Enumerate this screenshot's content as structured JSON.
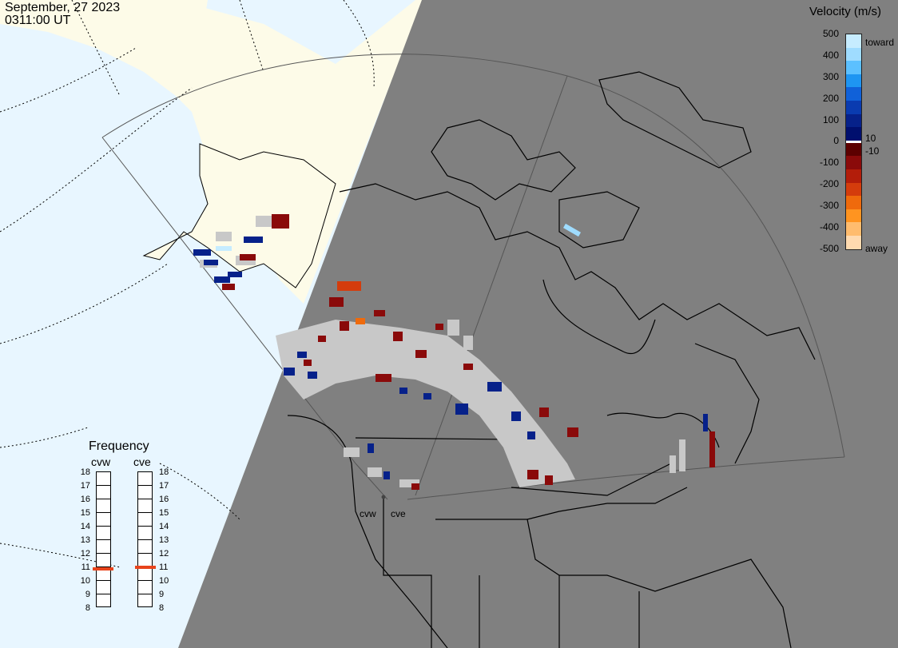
{
  "header": {
    "date": "September, 27 2023",
    "time": "0311:00 UT"
  },
  "legend": {
    "title": "Velocity (m/s)",
    "ticks": [
      "500",
      "400",
      "300",
      "200",
      "100",
      "10",
      "0",
      "-10",
      "-100",
      "-200",
      "-300",
      "-400",
      "-500"
    ],
    "toward_label": "toward",
    "away_label": "away",
    "colors_toward": [
      "#c6ecff",
      "#9fdcff",
      "#5cc0ff",
      "#1e95f2",
      "#1061d9",
      "#0a3bb0",
      "#06218a",
      "#000f6e"
    ],
    "colors_away": [
      "#5c0000",
      "#8a0a0a",
      "#b31d0a",
      "#d43c0c",
      "#ef6a0c",
      "#ff9420",
      "#ffbc6e",
      "#ffdab0"
    ],
    "zero_color": "#ffffff"
  },
  "frequency": {
    "title": "Frequency",
    "radars": [
      {
        "name": "cvw",
        "value_mhz": 10.8
      },
      {
        "name": "cve",
        "value_mhz": 10.9
      }
    ],
    "scale": [
      "18",
      "17",
      "16",
      "15",
      "14",
      "13",
      "12",
      "11",
      "10",
      "9",
      "8"
    ],
    "marker_color": "#e8431b"
  },
  "map": {
    "ocean_color": "#e8f6ff",
    "land_day_color": "#fdfbe8",
    "night_color": "#808080",
    "scatter_gray": "#c8c8c8",
    "radar_labels": [
      "cvw",
      "cve"
    ]
  }
}
